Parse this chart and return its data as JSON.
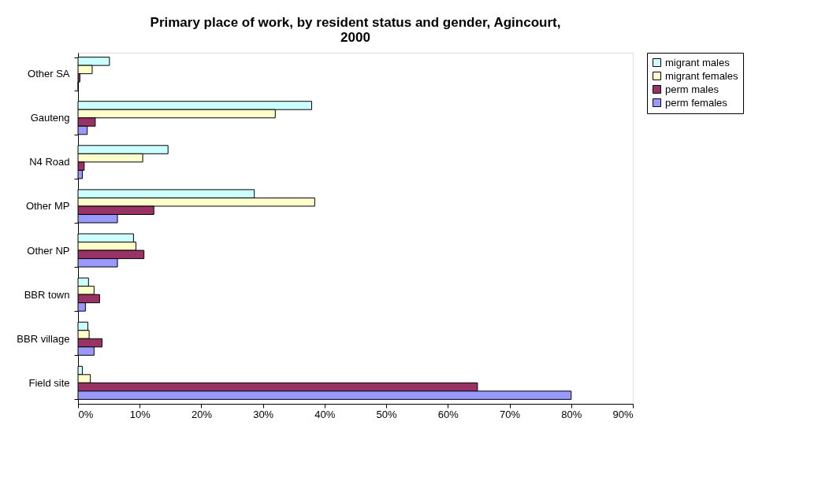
{
  "chart_data": {
    "type": "bar",
    "orientation": "horizontal",
    "title": "Primary place of work, by resident status and gender, Agincourt, 2000",
    "categories": [
      "Other SA",
      "Gauteng",
      "N4 Road",
      "Other MP",
      "Other NP",
      "BBR town",
      "BBR village",
      "Field site"
    ],
    "series": [
      {
        "name": "migrant males",
        "color": "#ccffff",
        "values": [
          5.1,
          37.9,
          14.6,
          28.6,
          9.0,
          1.7,
          1.6,
          0.7
        ]
      },
      {
        "name": "migrant females",
        "color": "#ffffcc",
        "values": [
          2.3,
          32.0,
          10.5,
          38.4,
          9.4,
          2.6,
          1.8,
          2.0
        ]
      },
      {
        "name": "perm males",
        "color": "#993366",
        "values": [
          0.3,
          2.8,
          1.0,
          12.3,
          10.7,
          3.5,
          3.9,
          64.8
        ]
      },
      {
        "name": "perm females",
        "color": "#9999ff",
        "values": [
          0.0,
          1.5,
          0.7,
          6.4,
          6.4,
          1.2,
          2.6,
          80.0
        ]
      }
    ],
    "xlim": [
      0,
      90
    ],
    "xticks": [
      {
        "value": 0,
        "label": "0%"
      },
      {
        "value": 10,
        "label": "10%"
      },
      {
        "value": 20,
        "label": "20%"
      },
      {
        "value": 30,
        "label": "30%"
      },
      {
        "value": 40,
        "label": "40%"
      },
      {
        "value": 50,
        "label": "50%"
      },
      {
        "value": 60,
        "label": "60%"
      },
      {
        "value": 70,
        "label": "70%"
      },
      {
        "value": 80,
        "label": "80%"
      },
      {
        "value": 90,
        "label": "90%"
      }
    ],
    "grid": false,
    "legend": "right"
  }
}
